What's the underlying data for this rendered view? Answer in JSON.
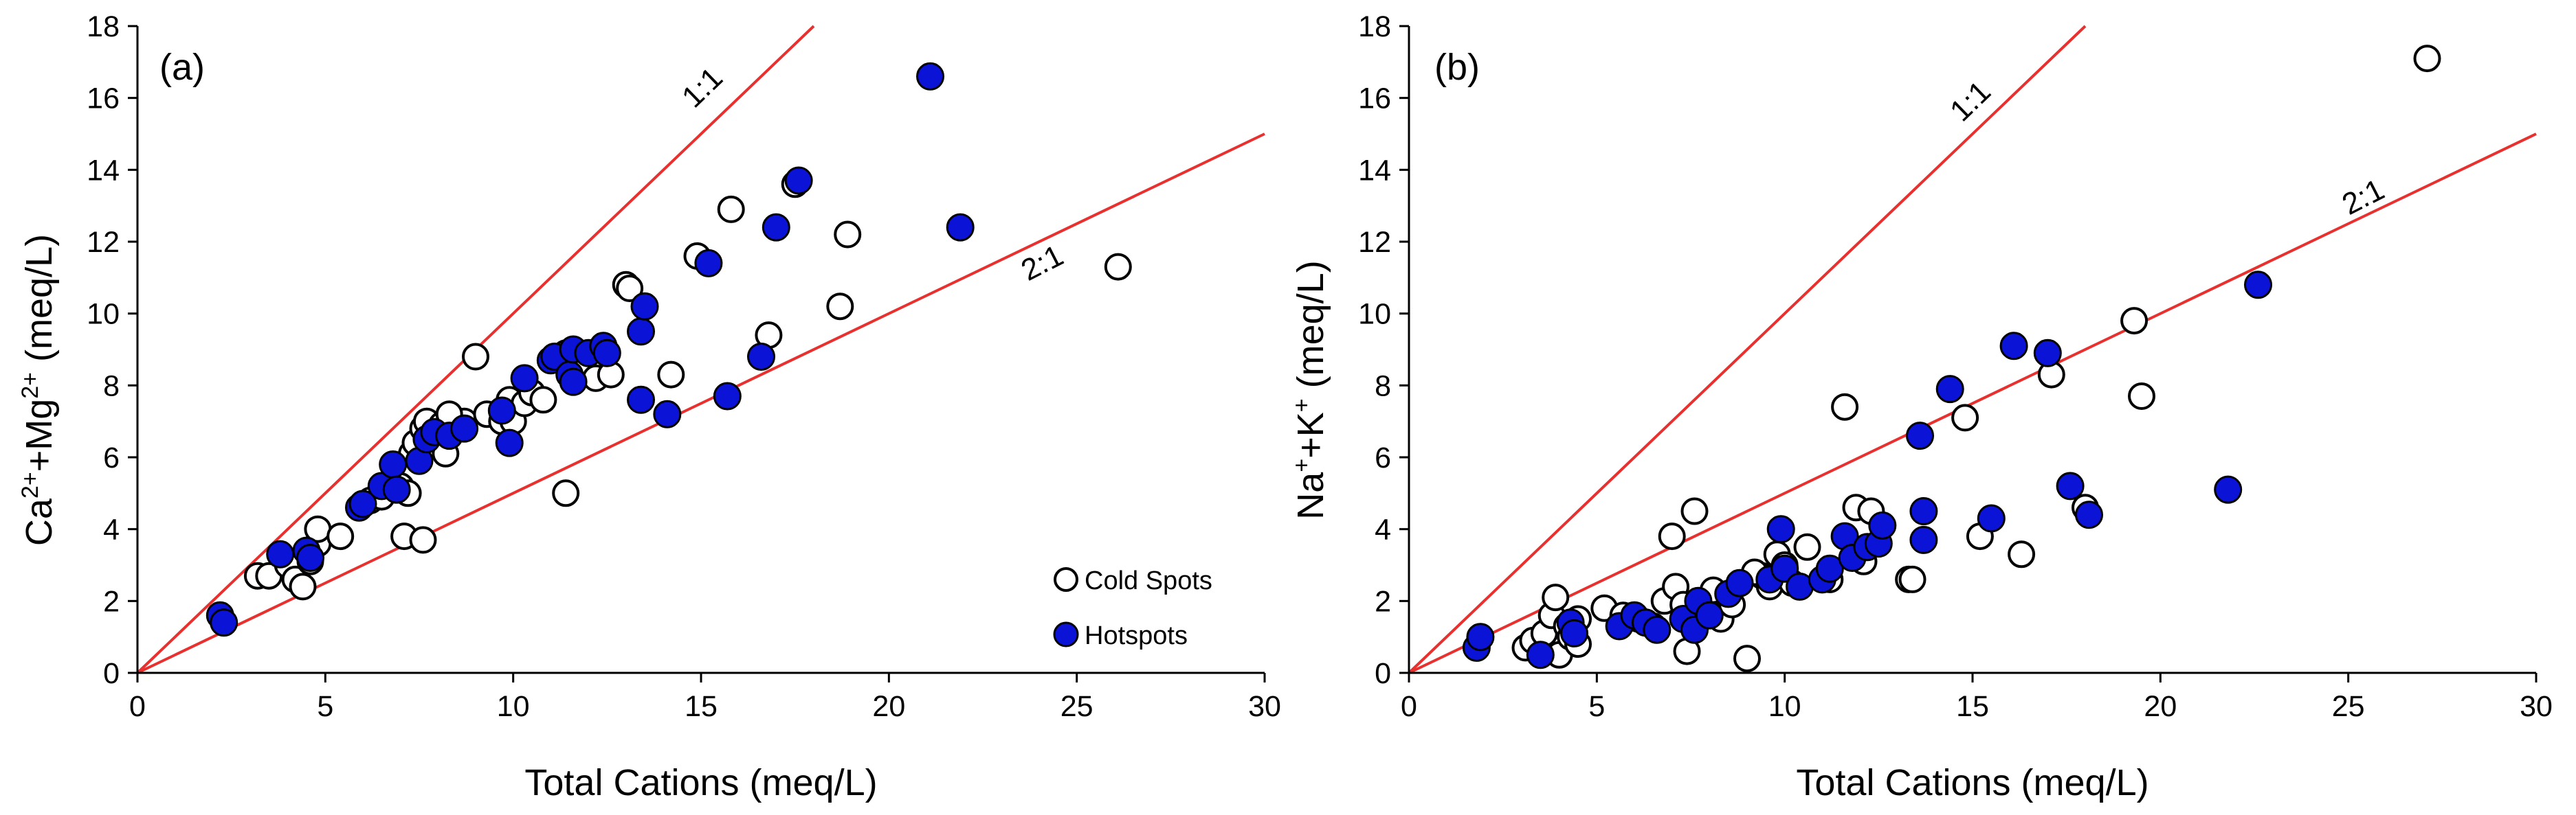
{
  "colors": {
    "hotspot_fill": "#0b14d6",
    "cold_fill": "#ffffff",
    "marker_stroke": "#000000",
    "ratio_line": "#e8312f",
    "axis": "#000000"
  },
  "legend": {
    "cold_label": "Cold Spots",
    "hot_label": "Hotspots",
    "placement": "bottom-right of panel (a)"
  },
  "chart_data": [
    {
      "type": "scatter",
      "panel_label": "(a)",
      "xlabel": "Total Cations (meq/L)",
      "ylabel": "Ca²⁺+Mg²⁺ (meq/L)",
      "xlim": [
        0,
        30
      ],
      "ylim": [
        0,
        18
      ],
      "xticks": [
        "0",
        "5",
        "10",
        "15",
        "20",
        "25",
        "30"
      ],
      "yticks": [
        "0",
        "2",
        "4",
        "6",
        "8",
        "10",
        "12",
        "14",
        "16",
        "18"
      ],
      "grid": false,
      "reference_lines": [
        {
          "label": "1:1",
          "slope": 1
        },
        {
          "label": "2:1",
          "slope": 0.5
        }
      ],
      "series": [
        {
          "name": "Cold Spots",
          "points": [
            [
              3.2,
              2.7
            ],
            [
              3.5,
              2.7
            ],
            [
              4.0,
              3.0
            ],
            [
              4.2,
              2.6
            ],
            [
              4.4,
              2.4
            ],
            [
              4.6,
              3.1
            ],
            [
              4.8,
              3.6
            ],
            [
              4.8,
              4.0
            ],
            [
              5.4,
              3.8
            ],
            [
              6.2,
              4.8
            ],
            [
              6.5,
              4.9
            ],
            [
              7.0,
              5.2
            ],
            [
              7.2,
              5.0
            ],
            [
              7.3,
              6.1
            ],
            [
              7.4,
              6.4
            ],
            [
              7.6,
              6.8
            ],
            [
              7.7,
              7.0
            ],
            [
              8.2,
              6.1
            ],
            [
              8.5,
              6.9
            ],
            [
              8.7,
              7.0
            ],
            [
              9.0,
              8.8
            ],
            [
              9.3,
              7.2
            ],
            [
              9.7,
              7.0
            ],
            [
              9.9,
              7.6
            ],
            [
              10.0,
              7.0
            ],
            [
              10.3,
              7.5
            ],
            [
              10.5,
              7.8
            ],
            [
              10.8,
              7.6
            ],
            [
              11.4,
              8.9
            ],
            [
              11.8,
              8.4
            ],
            [
              12.2,
              8.2
            ],
            [
              12.6,
              8.3
            ],
            [
              13.0,
              10.8
            ],
            [
              13.1,
              10.7
            ],
            [
              14.2,
              8.3
            ],
            [
              14.9,
              11.6
            ],
            [
              15.8,
              12.9
            ],
            [
              16.6,
              8.8
            ],
            [
              16.8,
              9.4
            ],
            [
              17.5,
              13.6
            ],
            [
              18.7,
              10.2
            ],
            [
              18.9,
              12.2
            ],
            [
              26.1,
              11.3
            ],
            [
              7.1,
              3.8
            ],
            [
              7.6,
              3.7
            ],
            [
              11.4,
              5.0
            ],
            [
              8.1,
              6.9
            ],
            [
              8.3,
              7.2
            ]
          ]
        },
        {
          "name": "Hotspots",
          "points": [
            [
              2.2,
              1.6
            ],
            [
              2.3,
              1.4
            ],
            [
              3.8,
              3.3
            ],
            [
              4.5,
              3.4
            ],
            [
              4.6,
              3.2
            ],
            [
              5.9,
              4.6
            ],
            [
              6.0,
              4.7
            ],
            [
              6.5,
              5.2
            ],
            [
              6.8,
              5.8
            ],
            [
              6.9,
              5.1
            ],
            [
              7.5,
              5.9
            ],
            [
              7.7,
              6.5
            ],
            [
              7.9,
              6.7
            ],
            [
              8.3,
              6.6
            ],
            [
              8.7,
              6.8
            ],
            [
              9.7,
              7.3
            ],
            [
              9.9,
              6.4
            ],
            [
              10.3,
              8.2
            ],
            [
              11.0,
              8.7
            ],
            [
              11.1,
              8.8
            ],
            [
              11.5,
              8.3
            ],
            [
              11.6,
              9.0
            ],
            [
              12.0,
              8.9
            ],
            [
              12.4,
              9.1
            ],
            [
              13.4,
              9.5
            ],
            [
              13.5,
              10.2
            ],
            [
              13.4,
              7.6
            ],
            [
              14.1,
              7.2
            ],
            [
              15.2,
              11.4
            ],
            [
              15.7,
              7.7
            ],
            [
              16.6,
              8.8
            ],
            [
              17.0,
              12.4
            ],
            [
              17.6,
              13.7
            ],
            [
              21.1,
              16.6
            ],
            [
              21.9,
              12.4
            ],
            [
              11.6,
              8.1
            ],
            [
              12.5,
              8.9
            ]
          ]
        }
      ]
    },
    {
      "type": "scatter",
      "panel_label": "(b)",
      "xlabel": "Total Cations (meq/L)",
      "ylabel": "Na⁺+K⁺ (meq/L)",
      "xlim": [
        0,
        30
      ],
      "ylim": [
        0,
        18
      ],
      "xticks": [
        "0",
        "5",
        "10",
        "15",
        "20",
        "25",
        "30"
      ],
      "yticks": [
        "0",
        "2",
        "4",
        "6",
        "8",
        "10",
        "12",
        "14",
        "16",
        "18"
      ],
      "grid": false,
      "reference_lines": [
        {
          "label": "1:1",
          "slope": 1
        },
        {
          "label": "2:1",
          "slope": 0.5
        }
      ],
      "series": [
        {
          "name": "Cold Spots",
          "points": [
            [
              3.1,
              0.7
            ],
            [
              3.3,
              0.9
            ],
            [
              3.6,
              1.1
            ],
            [
              3.8,
              1.6
            ],
            [
              3.9,
              2.1
            ],
            [
              4.0,
              0.5
            ],
            [
              4.2,
              1.3
            ],
            [
              4.3,
              1.0
            ],
            [
              4.5,
              1.5
            ],
            [
              4.5,
              0.8
            ],
            [
              5.2,
              1.8
            ],
            [
              5.7,
              1.6
            ],
            [
              6.1,
              1.5
            ],
            [
              6.5,
              1.3
            ],
            [
              6.8,
              2.0
            ],
            [
              7.0,
              3.8
            ],
            [
              7.1,
              2.4
            ],
            [
              7.3,
              1.9
            ],
            [
              7.4,
              0.6
            ],
            [
              7.6,
              4.5
            ],
            [
              7.9,
              2.0
            ],
            [
              8.1,
              2.3
            ],
            [
              8.3,
              1.5
            ],
            [
              8.6,
              1.9
            ],
            [
              9.0,
              0.4
            ],
            [
              9.4,
              2.7
            ],
            [
              9.6,
              2.4
            ],
            [
              9.8,
              3.3
            ],
            [
              10.0,
              3.0
            ],
            [
              10.6,
              3.5
            ],
            [
              11.2,
              2.6
            ],
            [
              11.6,
              7.4
            ],
            [
              11.9,
              4.6
            ],
            [
              12.1,
              3.1
            ],
            [
              12.3,
              4.5
            ],
            [
              13.3,
              2.6
            ],
            [
              13.4,
              2.6
            ],
            [
              14.8,
              7.1
            ],
            [
              15.2,
              3.8
            ],
            [
              16.3,
              3.3
            ],
            [
              17.1,
              8.3
            ],
            [
              18.0,
              4.6
            ],
            [
              19.3,
              9.8
            ],
            [
              19.5,
              7.7
            ],
            [
              27.1,
              17.1
            ],
            [
              9.2,
              2.8
            ],
            [
              10.2,
              2.5
            ]
          ]
        },
        {
          "name": "Hotspots",
          "points": [
            [
              1.8,
              0.7
            ],
            [
              1.9,
              1.0
            ],
            [
              3.5,
              0.5
            ],
            [
              4.3,
              1.4
            ],
            [
              4.4,
              1.1
            ],
            [
              5.6,
              1.3
            ],
            [
              6.0,
              1.6
            ],
            [
              6.3,
              1.4
            ],
            [
              6.6,
              1.2
            ],
            [
              7.3,
              1.5
            ],
            [
              7.6,
              1.2
            ],
            [
              7.7,
              2.0
            ],
            [
              8.0,
              1.6
            ],
            [
              8.5,
              2.2
            ],
            [
              8.8,
              2.5
            ],
            [
              9.6,
              2.6
            ],
            [
              9.9,
              4.0
            ],
            [
              10.0,
              2.9
            ],
            [
              10.4,
              2.4
            ],
            [
              11.0,
              2.6
            ],
            [
              11.2,
              2.9
            ],
            [
              11.6,
              3.8
            ],
            [
              11.8,
              3.2
            ],
            [
              12.2,
              3.5
            ],
            [
              12.5,
              3.6
            ],
            [
              12.6,
              4.1
            ],
            [
              13.6,
              6.6
            ],
            [
              13.7,
              4.5
            ],
            [
              13.7,
              3.7
            ],
            [
              14.4,
              7.9
            ],
            [
              15.5,
              4.3
            ],
            [
              16.1,
              9.1
            ],
            [
              17.0,
              8.9
            ],
            [
              17.6,
              5.2
            ],
            [
              18.1,
              4.4
            ],
            [
              21.8,
              5.1
            ],
            [
              22.6,
              10.8
            ]
          ]
        }
      ]
    }
  ]
}
